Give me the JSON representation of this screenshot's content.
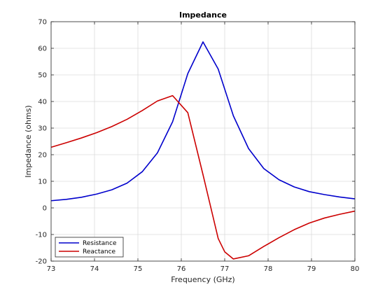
{
  "chart_data": {
    "type": "line",
    "title": "Impedance",
    "xlabel": "Frequency (GHz)",
    "ylabel": "Impedance (ohms)",
    "xlim": [
      73,
      80
    ],
    "ylim": [
      -20,
      70
    ],
    "xticks": [
      73,
      74,
      75,
      76,
      77,
      78,
      79,
      80
    ],
    "yticks": [
      -20,
      -10,
      0,
      10,
      20,
      30,
      40,
      50,
      60,
      70
    ],
    "grid": true,
    "legend_position": "bottom-left",
    "series": [
      {
        "name": "Resistance",
        "color": "#0000cc",
        "x": [
          73.0,
          73.35,
          73.7,
          74.05,
          74.4,
          74.75,
          75.1,
          75.45,
          75.8,
          76.15,
          76.5,
          76.85,
          77.2,
          77.55,
          77.9,
          78.25,
          78.6,
          78.95,
          79.3,
          79.65,
          80.0
        ],
        "y": [
          2.7,
          3.2,
          4.0,
          5.2,
          6.8,
          9.3,
          13.6,
          20.7,
          32.4,
          50.5,
          62.4,
          52.2,
          34.6,
          22.3,
          14.8,
          10.6,
          7.9,
          6.1,
          5.0,
          4.1,
          3.4
        ]
      },
      {
        "name": "Reactance",
        "color": "#cc0000",
        "x": [
          73.0,
          73.35,
          73.7,
          74.05,
          74.4,
          74.75,
          75.1,
          75.45,
          75.8,
          76.15,
          76.5,
          76.85,
          77.0,
          77.2,
          77.55,
          77.9,
          78.25,
          78.6,
          78.95,
          79.3,
          79.65,
          80.0
        ],
        "y": [
          22.8,
          24.5,
          26.3,
          28.3,
          30.6,
          33.3,
          36.6,
          40.2,
          42.2,
          35.8,
          12.5,
          -11.5,
          -16.5,
          -19.2,
          -18.0,
          -14.5,
          -11.2,
          -8.2,
          -5.7,
          -3.8,
          -2.4,
          -1.2
        ]
      }
    ]
  }
}
